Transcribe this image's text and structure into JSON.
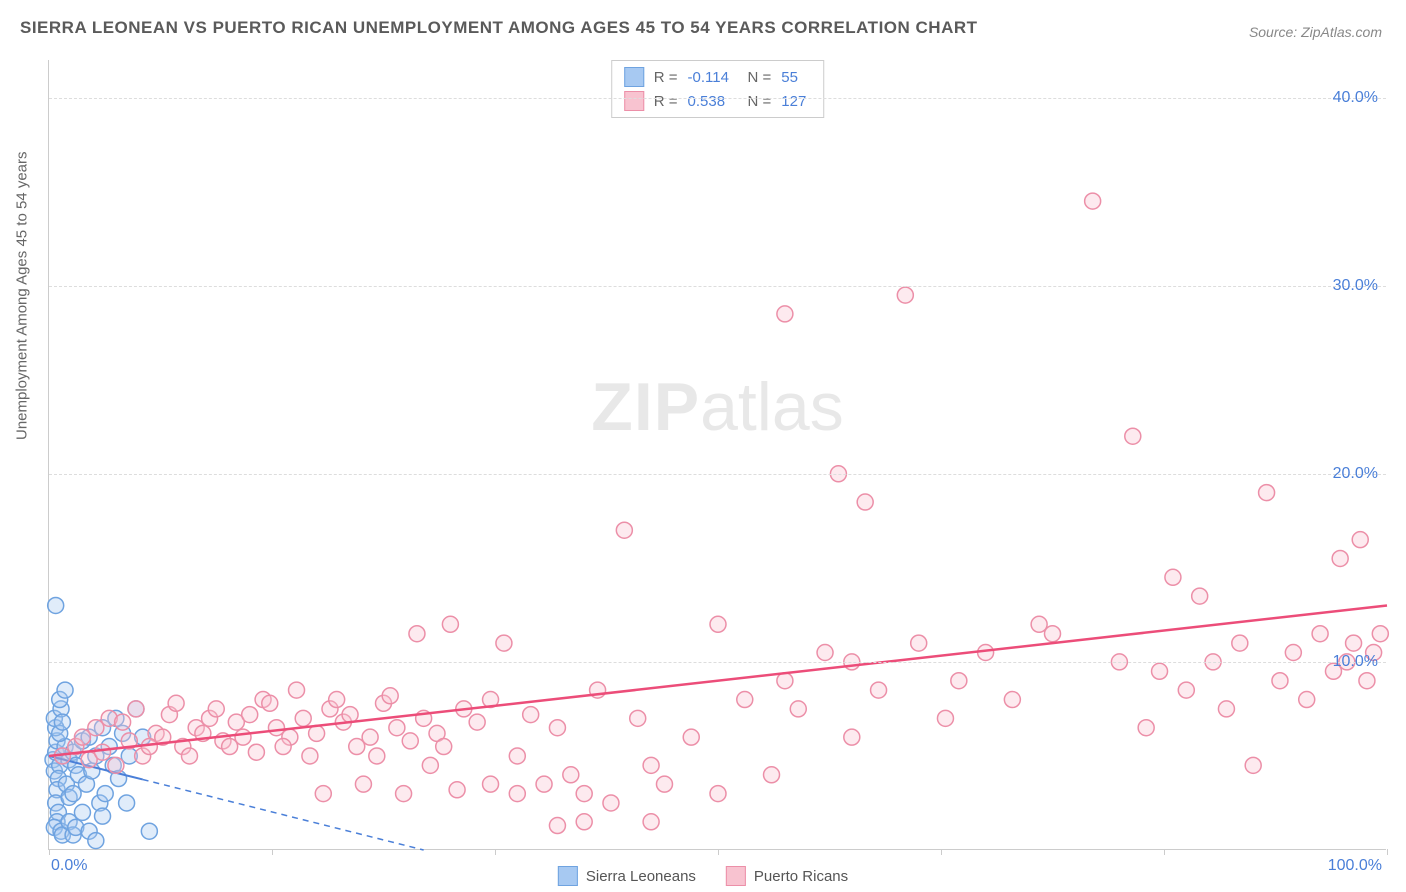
{
  "title": "SIERRA LEONEAN VS PUERTO RICAN UNEMPLOYMENT AMONG AGES 45 TO 54 YEARS CORRELATION CHART",
  "source_label": "Source: ZipAtlas.com",
  "ylabel": "Unemployment Among Ages 45 to 54 years",
  "watermark_zip": "ZIP",
  "watermark_atlas": "atlas",
  "chart": {
    "type": "scatter",
    "background_color": "#ffffff",
    "grid_color": "#dddddd",
    "axis_color": "#cccccc",
    "tick_label_color": "#4a7fd8",
    "xlim": [
      0,
      100
    ],
    "ylim": [
      0,
      42
    ],
    "xticks": [
      0,
      16.67,
      33.33,
      50,
      66.67,
      83.33,
      100
    ],
    "x_tick_labels": {
      "0": "0.0%",
      "100": "100.0%"
    },
    "yticks": [
      10,
      20,
      30,
      40
    ],
    "y_tick_labels": [
      "10.0%",
      "20.0%",
      "30.0%",
      "40.0%"
    ],
    "marker_radius": 8,
    "marker_stroke_width": 1.5,
    "fill_opacity": 0.35,
    "series": [
      {
        "name": "Sierra Leoneans",
        "color_fill": "#a7c9f2",
        "color_stroke": "#6fa3e0",
        "r": -0.114,
        "n": 55,
        "trend": {
          "x1": 0,
          "y1": 5.0,
          "x2": 28,
          "y2": 0,
          "solid_until_x": 7,
          "stroke": "#4a7fd8",
          "width": 2
        },
        "points": [
          [
            0.3,
            4.8
          ],
          [
            0.5,
            5.2
          ],
          [
            0.4,
            4.2
          ],
          [
            0.6,
            5.8
          ],
          [
            0.8,
            4.5
          ],
          [
            0.5,
            6.5
          ],
          [
            0.7,
            3.8
          ],
          [
            1.0,
            5.0
          ],
          [
            0.4,
            7.0
          ],
          [
            0.6,
            3.2
          ],
          [
            1.2,
            5.5
          ],
          [
            0.8,
            6.2
          ],
          [
            0.5,
            2.5
          ],
          [
            1.5,
            4.8
          ],
          [
            0.9,
            7.5
          ],
          [
            0.7,
            2.0
          ],
          [
            1.8,
            5.2
          ],
          [
            1.0,
            6.8
          ],
          [
            0.6,
            1.5
          ],
          [
            2.0,
            4.5
          ],
          [
            1.3,
            3.5
          ],
          [
            0.8,
            8.0
          ],
          [
            2.5,
            5.8
          ],
          [
            1.5,
            2.8
          ],
          [
            0.4,
            1.2
          ],
          [
            3.0,
            6.0
          ],
          [
            1.8,
            3.0
          ],
          [
            0.9,
            1.0
          ],
          [
            3.5,
            5.0
          ],
          [
            2.2,
            4.0
          ],
          [
            1.0,
            0.8
          ],
          [
            4.0,
            6.5
          ],
          [
            2.8,
            3.5
          ],
          [
            1.2,
            8.5
          ],
          [
            0.5,
            13.0
          ],
          [
            4.5,
            5.5
          ],
          [
            3.2,
            4.2
          ],
          [
            1.5,
            1.5
          ],
          [
            5.0,
            7.0
          ],
          [
            3.8,
            2.5
          ],
          [
            1.8,
            0.8
          ],
          [
            5.5,
            6.2
          ],
          [
            4.2,
            3.0
          ],
          [
            2.0,
            1.2
          ],
          [
            6.0,
            5.0
          ],
          [
            4.8,
            4.5
          ],
          [
            2.5,
            2.0
          ],
          [
            6.5,
            7.5
          ],
          [
            5.2,
            3.8
          ],
          [
            3.0,
            1.0
          ],
          [
            7.0,
            6.0
          ],
          [
            5.8,
            2.5
          ],
          [
            3.5,
            0.5
          ],
          [
            4.0,
            1.8
          ],
          [
            7.5,
            1.0
          ]
        ]
      },
      {
        "name": "Puerto Ricans",
        "color_fill": "#f8c3d0",
        "color_stroke": "#ec8fa8",
        "r": 0.538,
        "n": 127,
        "trend": {
          "x1": 0,
          "y1": 5.0,
          "x2": 100,
          "y2": 13.0,
          "solid_until_x": 100,
          "stroke": "#ec4d79",
          "width": 2.5
        },
        "points": [
          [
            1,
            5.0
          ],
          [
            2,
            5.5
          ],
          [
            3,
            4.8
          ],
          [
            2.5,
            6.0
          ],
          [
            4,
            5.2
          ],
          [
            3.5,
            6.5
          ],
          [
            5,
            4.5
          ],
          [
            4.5,
            7.0
          ],
          [
            6,
            5.8
          ],
          [
            5.5,
            6.8
          ],
          [
            7,
            5.0
          ],
          [
            6.5,
            7.5
          ],
          [
            8,
            6.2
          ],
          [
            7.5,
            5.5
          ],
          [
            9,
            7.2
          ],
          [
            8.5,
            6.0
          ],
          [
            10,
            5.5
          ],
          [
            9.5,
            7.8
          ],
          [
            11,
            6.5
          ],
          [
            10.5,
            5.0
          ],
          [
            12,
            7.0
          ],
          [
            11.5,
            6.2
          ],
          [
            13,
            5.8
          ],
          [
            12.5,
            7.5
          ],
          [
            14,
            6.8
          ],
          [
            13.5,
            5.5
          ],
          [
            15,
            7.2
          ],
          [
            14.5,
            6.0
          ],
          [
            16,
            8.0
          ],
          [
            15.5,
            5.2
          ],
          [
            17,
            6.5
          ],
          [
            16.5,
            7.8
          ],
          [
            18,
            6.0
          ],
          [
            17.5,
            5.5
          ],
          [
            19,
            7.0
          ],
          [
            18.5,
            8.5
          ],
          [
            20,
            6.2
          ],
          [
            19.5,
            5.0
          ],
          [
            21,
            7.5
          ],
          [
            20.5,
            3.0
          ],
          [
            22,
            6.8
          ],
          [
            21.5,
            8.0
          ],
          [
            23,
            5.5
          ],
          [
            22.5,
            7.2
          ],
          [
            24,
            6.0
          ],
          [
            23.5,
            3.5
          ],
          [
            25,
            7.8
          ],
          [
            24.5,
            5.0
          ],
          [
            26,
            6.5
          ],
          [
            25.5,
            8.2
          ],
          [
            27,
            5.8
          ],
          [
            26.5,
            3.0
          ],
          [
            28,
            7.0
          ],
          [
            27.5,
            11.5
          ],
          [
            29,
            6.2
          ],
          [
            28.5,
            4.5
          ],
          [
            30,
            12.0
          ],
          [
            29.5,
            5.5
          ],
          [
            31,
            7.5
          ],
          [
            30.5,
            3.2
          ],
          [
            32,
            6.8
          ],
          [
            33,
            8.0
          ],
          [
            34,
            11.0
          ],
          [
            35,
            5.0
          ],
          [
            36,
            7.2
          ],
          [
            37,
            3.5
          ],
          [
            38,
            6.5
          ],
          [
            39,
            4.0
          ],
          [
            40,
            3.0
          ],
          [
            41,
            8.5
          ],
          [
            42,
            2.5
          ],
          [
            43,
            17.0
          ],
          [
            44,
            7.0
          ],
          [
            45,
            4.5
          ],
          [
            46,
            3.5
          ],
          [
            48,
            6.0
          ],
          [
            50,
            12.0
          ],
          [
            52,
            8.0
          ],
          [
            54,
            4.0
          ],
          [
            55,
            28.5
          ],
          [
            56,
            7.5
          ],
          [
            58,
            10.5
          ],
          [
            59,
            20.0
          ],
          [
            60,
            6.0
          ],
          [
            61,
            18.5
          ],
          [
            62,
            8.5
          ],
          [
            64,
            29.5
          ],
          [
            65,
            11.0
          ],
          [
            67,
            7.0
          ],
          [
            68,
            9.0
          ],
          [
            70,
            10.5
          ],
          [
            72,
            8.0
          ],
          [
            74,
            12.0
          ],
          [
            75,
            11.5
          ],
          [
            78,
            34.5
          ],
          [
            80,
            10.0
          ],
          [
            81,
            22.0
          ],
          [
            82,
            6.5
          ],
          [
            83,
            9.5
          ],
          [
            84,
            14.5
          ],
          [
            85,
            8.5
          ],
          [
            86,
            13.5
          ],
          [
            87,
            10.0
          ],
          [
            88,
            7.5
          ],
          [
            89,
            11.0
          ],
          [
            90,
            4.5
          ],
          [
            91,
            19.0
          ],
          [
            92,
            9.0
          ],
          [
            93,
            10.5
          ],
          [
            94,
            8.0
          ],
          [
            95,
            11.5
          ],
          [
            96,
            9.5
          ],
          [
            96.5,
            15.5
          ],
          [
            97,
            10.0
          ],
          [
            97.5,
            11.0
          ],
          [
            98,
            16.5
          ],
          [
            98.5,
            9.0
          ],
          [
            99,
            10.5
          ],
          [
            99.5,
            11.5
          ],
          [
            40,
            1.5
          ],
          [
            38,
            1.3
          ],
          [
            45,
            1.5
          ],
          [
            50,
            3.0
          ],
          [
            55,
            9.0
          ],
          [
            60,
            10.0
          ],
          [
            33,
            3.5
          ],
          [
            35,
            3.0
          ]
        ]
      }
    ]
  },
  "legend": {
    "items": [
      {
        "label": "Sierra Leoneans",
        "fill": "#a7c9f2",
        "stroke": "#6fa3e0"
      },
      {
        "label": "Puerto Ricans",
        "fill": "#f8c3d0",
        "stroke": "#ec8fa8"
      }
    ]
  },
  "stats_box": {
    "rows": [
      {
        "swatch_fill": "#a7c9f2",
        "swatch_stroke": "#6fa3e0",
        "r_label": "R =",
        "r_val": "-0.114",
        "n_label": "N =",
        "n_val": "55"
      },
      {
        "swatch_fill": "#f8c3d0",
        "swatch_stroke": "#ec8fa8",
        "r_label": "R =",
        "r_val": "0.538",
        "n_label": "N =",
        "n_val": "127"
      }
    ]
  }
}
